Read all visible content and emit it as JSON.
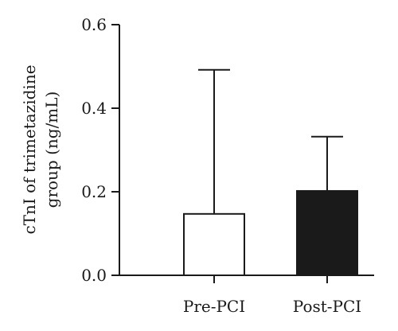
{
  "chart_data": {
    "type": "bar",
    "categories": [
      "Pre-PCI",
      "Post-PCI"
    ],
    "values": [
      0.147,
      0.202
    ],
    "error_upper": [
      0.492,
      0.332
    ],
    "bar_fill": [
      "#ffffff",
      "#1a1a1a"
    ],
    "ylabel_line1": "cTnI of trimetazidine",
    "ylabel_line2": "group (ng/mL)",
    "ylim": [
      0,
      0.6
    ],
    "yticks": [
      0,
      0.2,
      0.4,
      0.6
    ],
    "ytick_labels": [
      "0.0",
      "0.2",
      "0.4",
      "0.6"
    ],
    "grid": false
  }
}
